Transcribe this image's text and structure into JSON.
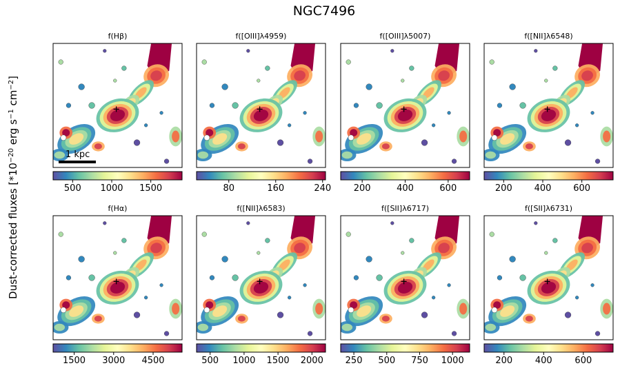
{
  "chart_data": {
    "type": "heatmap",
    "title": "NGC7496",
    "ylabel": "Dust-corrected fluxes [*10$^{-20}$ erg s$^{-1}$ cm$^{-2}$]",
    "ylabel_parts": {
      "prefix": "Dust-corrected fluxes [*10",
      "exp1": "−20",
      "mid1": " erg s",
      "exp2": "−1",
      "mid2": " cm",
      "exp3": "−2",
      "suffix": "]"
    },
    "scalebar_label": "1 kpc",
    "colormap": "Spectral_r",
    "colormap_stops": [
      "#5e4fa2",
      "#3288bd",
      "#66c2a5",
      "#abdda4",
      "#e6f598",
      "#ffffbf",
      "#fee08b",
      "#fdae61",
      "#f46d43",
      "#d53e4f",
      "#9e0142"
    ],
    "panels": [
      {
        "title": "f(Hβ)",
        "vmin": 250,
        "vmax": 1900,
        "ticks": [
          500,
          1000,
          1500
        ],
        "tick_labels": [
          "500",
          "1000",
          "1500"
        ]
      },
      {
        "title": "f([OIII]λ4959)",
        "vmin": 25,
        "vmax": 245,
        "ticks": [
          80,
          160,
          240
        ],
        "tick_labels": [
          "80",
          "160",
          "240"
        ]
      },
      {
        "title": "f([OIII]λ5007)",
        "vmin": 100,
        "vmax": 700,
        "ticks": [
          200,
          400,
          600
        ],
        "tick_labels": [
          "200",
          "400",
          "600"
        ]
      },
      {
        "title": "f([NII]λ6548)",
        "vmin": 100,
        "vmax": 760,
        "ticks": [
          200,
          400,
          600
        ],
        "tick_labels": [
          "200",
          "400",
          "600"
        ]
      },
      {
        "title": "f(Hα)",
        "vmin": 700,
        "vmax": 5600,
        "ticks": [
          1500,
          3000,
          4500
        ],
        "tick_labels": [
          "1500",
          "3000",
          "4500"
        ]
      },
      {
        "title": "f([NII]λ6583)",
        "vmin": 300,
        "vmax": 2200,
        "ticks": [
          500,
          1000,
          1500,
          2000
        ],
        "tick_labels": [
          "500",
          "1000",
          "1500",
          "2000"
        ]
      },
      {
        "title": "f([SII]λ6717)",
        "vmin": 150,
        "vmax": 1130,
        "ticks": [
          250,
          500,
          750,
          1000
        ],
        "tick_labels": [
          "250",
          "500",
          "750",
          "1000"
        ]
      },
      {
        "title": "f([SII]λ6731)",
        "vmin": 100,
        "vmax": 750,
        "ticks": [
          200,
          400,
          600
        ],
        "tick_labels": [
          "200",
          "400",
          "600"
        ]
      }
    ]
  }
}
